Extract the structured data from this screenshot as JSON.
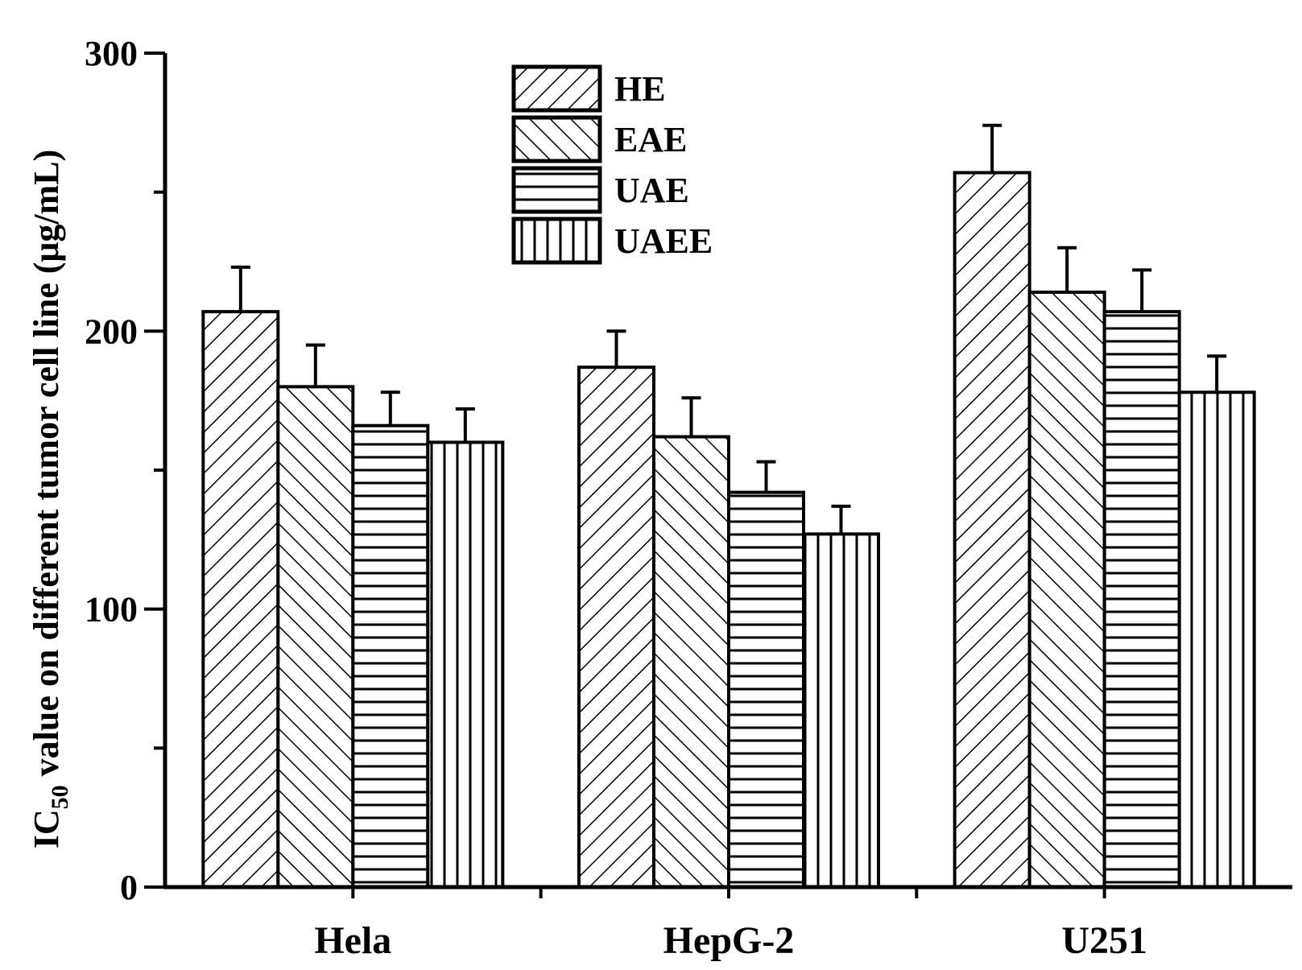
{
  "chart_data": {
    "type": "bar",
    "title": "",
    "xlabel": "",
    "ylabel": {
      "main": "IC",
      "subscript": "50",
      "rest": " value on different tumor cell line (μg/mL)"
    },
    "ylim": [
      0,
      300
    ],
    "yticks": [
      0,
      100,
      200,
      300
    ],
    "categories": [
      "Hela",
      "HepG-2",
      "U251"
    ],
    "series": [
      {
        "name": "HE",
        "pattern": "diag-up",
        "values": [
          207,
          187,
          257
        ],
        "errors": [
          16,
          13,
          17
        ]
      },
      {
        "name": "EAE",
        "pattern": "diag-down",
        "values": [
          180,
          162,
          214
        ],
        "errors": [
          15,
          14,
          16
        ]
      },
      {
        "name": "UAE",
        "pattern": "horizontal",
        "values": [
          166,
          142,
          207
        ],
        "errors": [
          12,
          11,
          15
        ]
      },
      {
        "name": "UAEE",
        "pattern": "vertical",
        "values": [
          160,
          127,
          178
        ],
        "errors": [
          12,
          10,
          13
        ]
      }
    ],
    "legend_position": "top-center",
    "grid": false
  }
}
